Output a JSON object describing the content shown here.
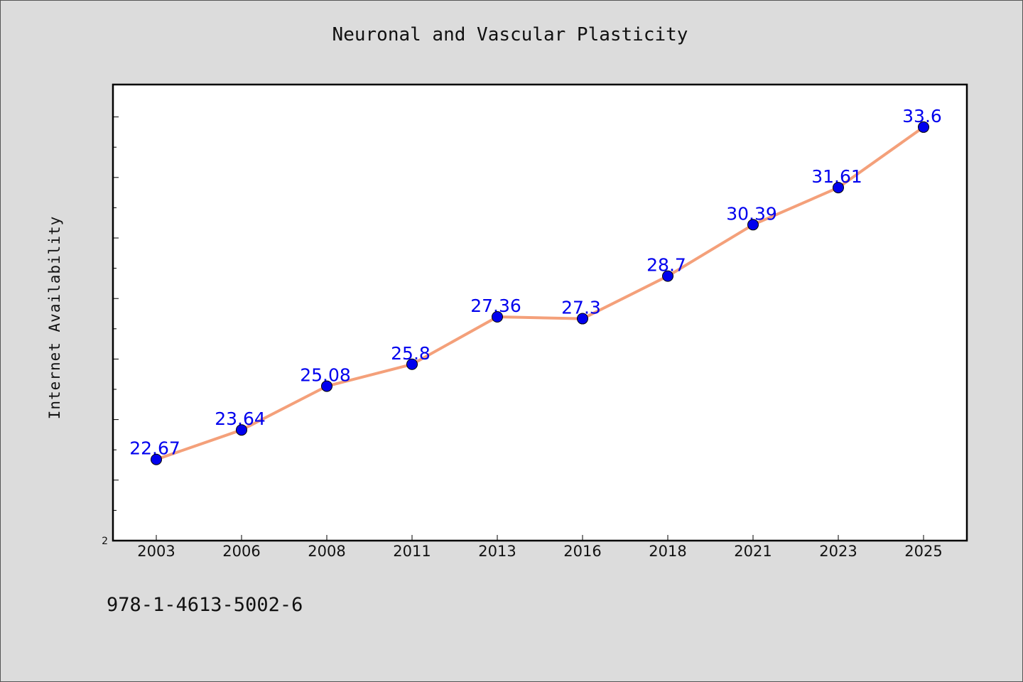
{
  "chart_data": {
    "type": "line",
    "title": "Neuronal and Vascular Plasticity",
    "xlabel": "",
    "ylabel": "Internet Availability",
    "categories": [
      "2003",
      "2006",
      "2008",
      "2011",
      "2013",
      "2016",
      "2018",
      "2021",
      "2023",
      "2025"
    ],
    "series": [
      {
        "values": [
          22.67,
          23.64,
          25.08,
          25.8,
          27.36,
          27.3,
          28.7,
          30.39,
          31.61,
          33.6
        ],
        "labels": [
          "22.67",
          "23.64",
          "25.08",
          "25.8",
          "27.36",
          "27.3",
          "28.7",
          "30.39",
          "31.61",
          "33.6"
        ]
      }
    ],
    "y_tick_labels": [
      "2"
    ],
    "ylim": [
      20,
      35
    ],
    "grid": false,
    "legend": "none",
    "colors": {
      "line": "#f4a07a",
      "marker": "#0000ee",
      "data_label": "#0000ee",
      "plot_background": "#ffffff",
      "page_background": "#dcdcdc"
    }
  },
  "footer": {
    "code": "978-1-4613-5002-6"
  }
}
